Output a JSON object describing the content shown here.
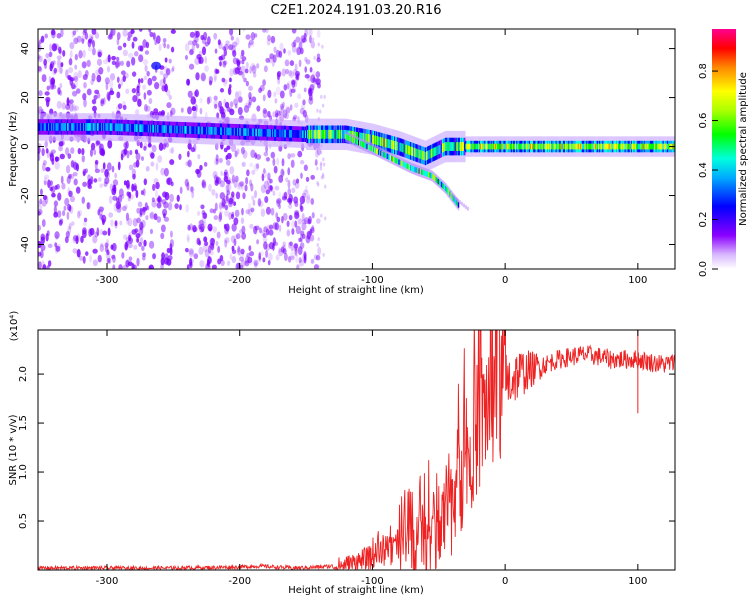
{
  "figure_title": "C2E1.2024.191.03.20.R16",
  "chart_data": [
    {
      "type": "heatmap",
      "title": "C2E1.2024.191.03.20.R16",
      "xlabel": "Height of straight line (km)",
      "ylabel": "Frequency (Hz)",
      "xlim": [
        -352,
        128
      ],
      "ylim": [
        -50,
        48
      ],
      "xticks": [
        -300,
        -200,
        -100,
        0,
        100
      ],
      "xtick_labels": [
        "-300",
        "-200",
        "-100",
        "0",
        "100"
      ],
      "yticks": [
        -40,
        -20,
        0,
        20,
        40
      ],
      "ytick_labels": [
        "-40",
        "-20",
        "0",
        "20",
        "40"
      ],
      "grid": false,
      "colorbar": {
        "label": "Normalized spectral amplitude",
        "range": [
          0,
          0.97
        ],
        "ticks": [
          0.0,
          0.2,
          0.4,
          0.6,
          0.8
        ],
        "tick_labels": [
          "0.0",
          "0.2",
          "0.4",
          "0.6",
          "0.8"
        ],
        "position": "right",
        "colormap": [
          "#ffffff",
          "#8a00ff",
          "#0000ff",
          "#00e0ff",
          "#00ff00",
          "#ffff00",
          "#ff0000",
          "#ff0090"
        ]
      },
      "features": {
        "broadband_noise_region_x": [
          -352,
          -140
        ],
        "noise_gap_x": [
          -250,
          -240
        ],
        "line_center_freq": [
          {
            "x": -350,
            "y": 8
          },
          {
            "x": -300,
            "y": 8
          },
          {
            "x": -250,
            "y": 7
          },
          {
            "x": -200,
            "y": 6
          },
          {
            "x": -150,
            "y": 5
          },
          {
            "x": -120,
            "y": 5
          },
          {
            "x": -100,
            "y": 3
          },
          {
            "x": -80,
            "y": 0
          },
          {
            "x": -60,
            "y": -4
          },
          {
            "x": -45,
            "y": 0
          },
          {
            "x": -30,
            "y": 0
          },
          {
            "x": 0,
            "y": 0
          },
          {
            "x": 50,
            "y": 0
          },
          {
            "x": 100,
            "y": 0
          },
          {
            "x": 128,
            "y": 0
          }
        ],
        "descending_branch": [
          {
            "x": -120,
            "y": 4
          },
          {
            "x": -100,
            "y": -1
          },
          {
            "x": -85,
            "y": -5
          },
          {
            "x": -70,
            "y": -9
          },
          {
            "x": -55,
            "y": -12
          },
          {
            "x": -45,
            "y": -17
          },
          {
            "x": -35,
            "y": -24
          }
        ]
      }
    },
    {
      "type": "line",
      "xlabel": "Height of straight line (km)",
      "ylabel": "SNR (10 * v/v)",
      "yunit_multiplier": "(x10⁴)",
      "xlim": [
        -352,
        128
      ],
      "ylim": [
        0,
        2.45
      ],
      "xticks": [
        -300,
        -200,
        -100,
        0,
        100
      ],
      "xtick_labels": [
        "-300",
        "-200",
        "-100",
        "0",
        "100"
      ],
      "yticks": [
        0.5,
        1.0,
        1.5,
        2.0
      ],
      "ytick_labels": [
        "0.5",
        "1.0",
        "1.5",
        "2.0"
      ],
      "grid": false,
      "series": [
        {
          "color": "#ee2222",
          "x": [
            -352,
            -300,
            -250,
            -200,
            -185,
            -160,
            -140,
            -120,
            -100,
            -80,
            -70,
            -60,
            -50,
            -40,
            -30,
            -20,
            -10,
            0,
            10,
            20,
            30,
            40,
            50,
            60,
            70,
            80,
            90,
            100,
            110,
            120,
            128
          ],
          "y": [
            0.02,
            0.02,
            0.02,
            0.03,
            0.04,
            0.02,
            0.03,
            0.05,
            0.12,
            0.25,
            0.3,
            0.2,
            0.4,
            0.7,
            1.1,
            1.5,
            1.8,
            1.9,
            2.0,
            2.05,
            2.1,
            2.15,
            2.18,
            2.2,
            2.18,
            2.15,
            2.15,
            2.15,
            2.12,
            2.1,
            2.12
          ]
        }
      ]
    }
  ]
}
